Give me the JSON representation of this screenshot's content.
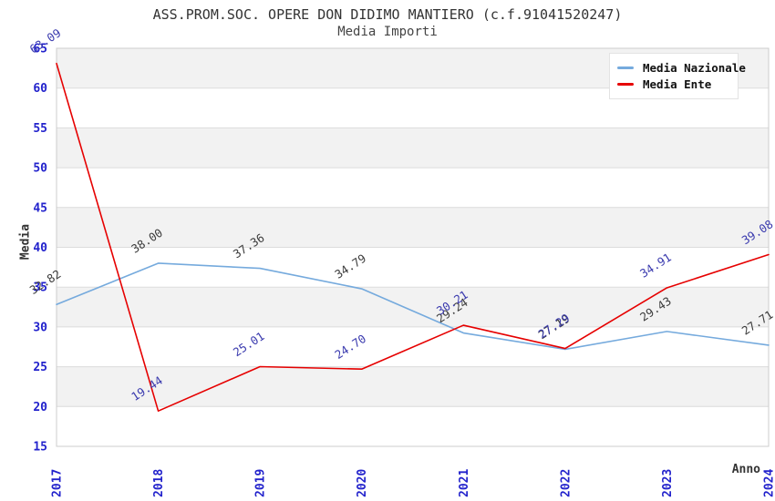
{
  "title": "ASS.PROM.SOC. OPERE DON DIDIMO MANTIERO (c.f.91041520247)",
  "subtitle": "Media Importi",
  "colors": {
    "tick_label": "#2222cc",
    "title_text": "#333333",
    "band_gray": "#f2f2f2",
    "gridline": "#dcdcdc",
    "plot_border": "#cccccc",
    "background": "#ffffff"
  },
  "legend": {
    "position": "top-right",
    "items": [
      "Media Nazionale",
      "Media Ente"
    ]
  },
  "chart_data": {
    "type": "line",
    "title": "ASS.PROM.SOC. OPERE DON DIDIMO MANTIERO (c.f.91041520247)",
    "subtitle": "Media Importi",
    "xlabel": "Anno",
    "ylabel": "Media",
    "categories": [
      "2017",
      "2018",
      "2019",
      "2020",
      "2021",
      "2022",
      "2023",
      "2024"
    ],
    "series": [
      {
        "name": "Media Nazionale",
        "color": "#75aadd",
        "label_color": "#3c3c3c",
        "values": [
          32.82,
          38.0,
          37.36,
          34.79,
          29.24,
          27.19,
          29.43,
          27.71
        ]
      },
      {
        "name": "Media Ente",
        "color": "#e60000",
        "label_color": "#3a3aae",
        "values": [
          63.09,
          19.44,
          25.01,
          24.7,
          30.21,
          27.29,
          34.91,
          39.08
        ]
      }
    ],
    "ylim": [
      15,
      65
    ],
    "ytick_step": 5,
    "grid": "horizontal-bands-alternating",
    "legend_position": "top-right",
    "value_label_decimals": 2
  }
}
